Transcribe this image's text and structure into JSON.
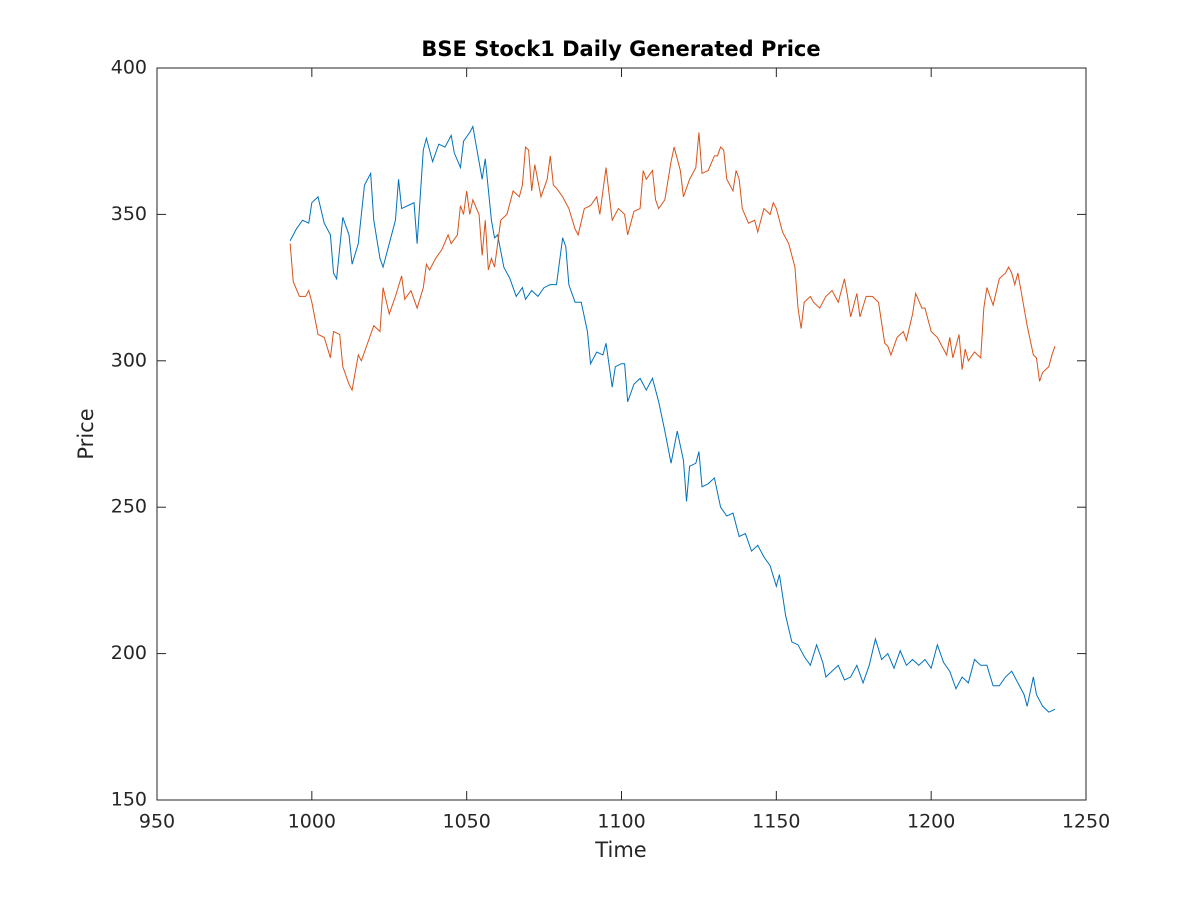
{
  "chart_data": {
    "type": "line",
    "title": "BSE Stock1 Daily Generated Price",
    "xlabel": "Time",
    "ylabel": "Price",
    "xlim": [
      950,
      1250
    ],
    "xticks": [
      950,
      1000,
      1050,
      1100,
      1150,
      1200,
      1250
    ],
    "ylim": [
      150,
      400
    ],
    "yticks": [
      150,
      200,
      250,
      300,
      350,
      400
    ],
    "grid": false,
    "series": [
      {
        "color": "#0072bd",
        "x": [
          993,
          995,
          997,
          999,
          1000,
          1002,
          1004,
          1006,
          1007,
          1008,
          1010,
          1012,
          1013,
          1015,
          1017,
          1018,
          1019,
          1020,
          1022,
          1023,
          1025,
          1027,
          1028,
          1029,
          1031,
          1033,
          1034,
          1036,
          1037,
          1039,
          1041,
          1043,
          1045,
          1046,
          1048,
          1049,
          1051,
          1052,
          1054,
          1055,
          1056,
          1058,
          1059,
          1060,
          1062,
          1064,
          1066,
          1068,
          1069,
          1071,
          1073,
          1075,
          1077,
          1079,
          1081,
          1082,
          1083,
          1085,
          1087,
          1089,
          1090,
          1092,
          1094,
          1095,
          1097,
          1098,
          1100,
          1101,
          1102,
          1104,
          1106,
          1108,
          1110,
          1112,
          1114,
          1116,
          1118,
          1120,
          1121,
          1122,
          1124,
          1125,
          1126,
          1128,
          1130,
          1132,
          1134,
          1136,
          1138,
          1140,
          1142,
          1144,
          1146,
          1148,
          1150,
          1151,
          1153,
          1155,
          1157,
          1159,
          1161,
          1163,
          1165,
          1166,
          1168,
          1170,
          1172,
          1174,
          1176,
          1178,
          1180,
          1182,
          1184,
          1186,
          1188,
          1190,
          1192,
          1194,
          1196,
          1198,
          1200,
          1202,
          1204,
          1206,
          1208,
          1210,
          1212,
          1214,
          1216,
          1218,
          1220,
          1222,
          1224,
          1226,
          1228,
          1230,
          1231,
          1233,
          1234,
          1236,
          1238,
          1240
        ],
        "values": [
          341,
          345,
          348,
          347,
          354,
          356,
          347,
          343,
          330,
          328,
          349,
          343,
          333,
          340,
          360,
          362,
          364,
          348,
          335,
          332,
          340,
          348,
          362,
          352,
          353,
          354,
          340,
          372,
          376,
          368,
          374,
          373,
          377,
          371,
          366,
          375,
          378,
          380,
          368,
          362,
          369,
          348,
          342,
          343,
          332,
          328,
          322,
          325,
          321,
          324,
          322,
          325,
          326,
          326,
          342,
          339,
          326,
          320,
          320,
          310,
          299,
          303,
          302,
          306,
          291,
          298,
          299,
          299,
          286,
          292,
          294,
          290,
          294,
          286,
          276,
          265,
          276,
          266,
          252,
          264,
          265,
          269,
          257,
          258,
          260,
          250,
          247,
          248,
          240,
          241,
          235,
          237,
          233,
          230,
          223,
          227,
          213,
          204,
          203,
          199,
          196,
          203,
          197,
          192,
          194,
          196,
          191,
          192,
          196,
          190,
          196,
          205,
          198,
          200,
          195,
          201,
          196,
          198,
          196,
          198,
          195,
          203,
          197,
          194,
          188,
          192,
          190,
          198,
          196,
          196,
          189,
          189,
          192,
          194,
          190,
          186,
          182,
          192,
          186,
          182,
          180,
          181
        ]
      },
      {
        "color": "#d95319",
        "x": [
          993,
          994,
          996,
          998,
          999,
          1000,
          1002,
          1004,
          1006,
          1007,
          1009,
          1010,
          1012,
          1013,
          1015,
          1016,
          1018,
          1020,
          1022,
          1023,
          1025,
          1027,
          1029,
          1030,
          1032,
          1034,
          1036,
          1037,
          1038,
          1040,
          1042,
          1044,
          1045,
          1047,
          1048,
          1049,
          1050,
          1051,
          1052,
          1054,
          1055,
          1056,
          1057,
          1058,
          1059,
          1060,
          1061,
          1063,
          1065,
          1067,
          1068,
          1069,
          1070,
          1071,
          1072,
          1074,
          1076,
          1077,
          1078,
          1079,
          1081,
          1083,
          1085,
          1086,
          1088,
          1090,
          1092,
          1093,
          1094,
          1095,
          1097,
          1099,
          1101,
          1102,
          1104,
          1106,
          1107,
          1108,
          1110,
          1111,
          1112,
          1114,
          1116,
          1117,
          1119,
          1120,
          1122,
          1124,
          1125,
          1126,
          1128,
          1130,
          1131,
          1132,
          1133,
          1134,
          1136,
          1137,
          1138,
          1139,
          1141,
          1143,
          1144,
          1146,
          1148,
          1149,
          1150,
          1152,
          1154,
          1156,
          1157,
          1158,
          1159,
          1161,
          1162,
          1164,
          1166,
          1168,
          1170,
          1172,
          1173,
          1174,
          1176,
          1177,
          1179,
          1181,
          1183,
          1185,
          1186,
          1187,
          1189,
          1191,
          1192,
          1194,
          1195,
          1197,
          1198,
          1200,
          1202,
          1204,
          1205,
          1206,
          1207,
          1209,
          1210,
          1211,
          1212,
          1214,
          1216,
          1217,
          1218,
          1220,
          1222,
          1224,
          1225,
          1226,
          1227,
          1228,
          1230,
          1231,
          1233,
          1234,
          1235,
          1236,
          1238,
          1239,
          1240
        ],
        "values": [
          340,
          327,
          322,
          322,
          324,
          320,
          309,
          308,
          301,
          310,
          309,
          298,
          292,
          290,
          302,
          300,
          306,
          312,
          310,
          325,
          316,
          322,
          329,
          321,
          324,
          318,
          325,
          333,
          331,
          335,
          338,
          343,
          340,
          343,
          353,
          350,
          358,
          350,
          355,
          350,
          336,
          348,
          331,
          335,
          332,
          340,
          348,
          350,
          358,
          356,
          360,
          373,
          372,
          358,
          367,
          356,
          362,
          370,
          360,
          359,
          356,
          352,
          345,
          343,
          352,
          353,
          356,
          350,
          358,
          366,
          348,
          352,
          350,
          343,
          351,
          352,
          365,
          362,
          365,
          355,
          352,
          355,
          368,
          373,
          365,
          356,
          362,
          366,
          378,
          364,
          365,
          370,
          370,
          373,
          372,
          362,
          358,
          365,
          362,
          352,
          347,
          348,
          344,
          352,
          350,
          354,
          352,
          344,
          340,
          332,
          318,
          311,
          320,
          322,
          320,
          318,
          322,
          324,
          320,
          328,
          322,
          315,
          323,
          315,
          322,
          322,
          320,
          306,
          305,
          302,
          308,
          310,
          307,
          316,
          323,
          318,
          318,
          310,
          308,
          304,
          302,
          308,
          301,
          309,
          297,
          304,
          300,
          303,
          301,
          318,
          325,
          319,
          328,
          330,
          332,
          330,
          326,
          330,
          318,
          312,
          302,
          301,
          293,
          296,
          298,
          302,
          305
        ]
      }
    ]
  }
}
